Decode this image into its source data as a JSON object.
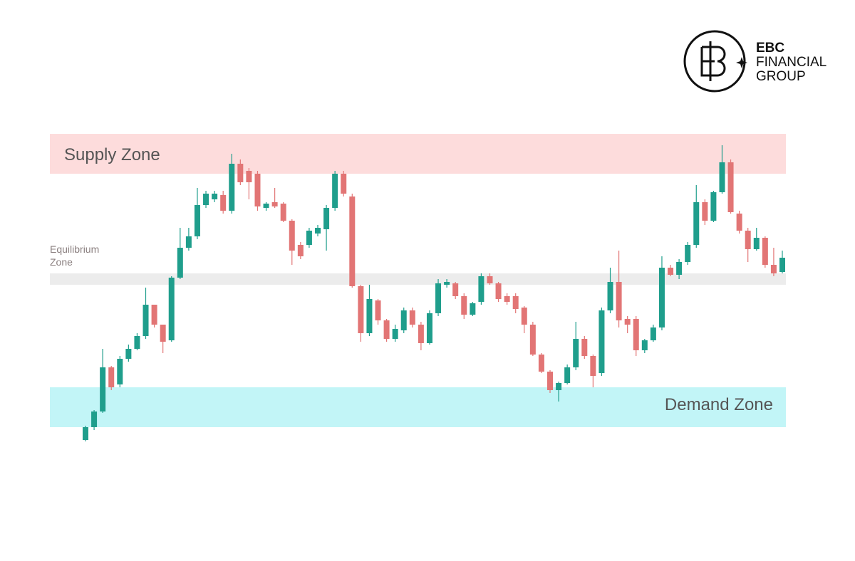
{
  "logo": {
    "line1": "EBC",
    "line2": "FINANCIAL",
    "line3": "GROUP"
  },
  "chart_data": {
    "type": "candlestick",
    "ylim": [
      0,
      120
    ],
    "up_color": "#1f9e8c",
    "down_color": "#e27575",
    "zones": [
      {
        "label": "Supply Zone",
        "range": [
          99,
          113
        ],
        "color": "#fddcdc"
      },
      {
        "label": "Equilibrium Zone",
        "range": [
          60,
          64
        ],
        "color": "#ececec"
      },
      {
        "label": "Demand Zone",
        "range": [
          10,
          24
        ],
        "color": "#c2f5f7"
      }
    ],
    "open": [
      5.5,
      10,
      15.5,
      31,
      25,
      34,
      37.5,
      42,
      53,
      46,
      40.5,
      62.5,
      73,
      77,
      88,
      90,
      91.5,
      86,
      102.5,
      100,
      99,
      87,
      89,
      88.5,
      82.5,
      74,
      74,
      78,
      79.5,
      87,
      99,
      91,
      59.5,
      43,
      54.5,
      47.5,
      41,
      44,
      51,
      46,
      39.5,
      50,
      60,
      60.5,
      56,
      49.5,
      54,
      63,
      60.5,
      56,
      56,
      52,
      46,
      35.5,
      29.5,
      23,
      25.5,
      31,
      41,
      35,
      29,
      51,
      61,
      48,
      48,
      37,
      40.5,
      45,
      66,
      63.5,
      68,
      74,
      89,
      82.5,
      92.5,
      103,
      85,
      79,
      72.5,
      76.5,
      67,
      64.5
    ],
    "high": [
      10.5,
      16,
      37.5,
      31.5,
      35,
      39,
      43,
      59,
      53,
      46,
      63,
      80,
      80,
      94,
      93,
      93,
      93,
      106,
      104,
      101,
      100,
      89,
      94,
      89,
      83,
      75,
      80,
      81,
      88,
      100,
      100,
      92,
      60,
      60,
      55,
      48,
      46,
      52,
      52,
      47,
      51,
      62,
      62,
      61,
      57,
      54,
      64,
      64,
      61,
      57,
      57,
      52.5,
      47,
      36,
      30,
      26,
      32,
      47,
      42,
      35.5,
      52,
      66,
      72,
      49,
      49,
      41,
      46,
      70,
      67,
      69,
      75,
      95,
      90,
      93,
      109,
      104,
      86,
      80,
      80,
      77,
      73,
      72
    ],
    "low": [
      5,
      9,
      15,
      23,
      24,
      33,
      37,
      41,
      45,
      36,
      40,
      62,
      72,
      76,
      87,
      89,
      85,
      85,
      95,
      90,
      86,
      86,
      87,
      82,
      67,
      69,
      73,
      77,
      72,
      86,
      91,
      59,
      40,
      42,
      46,
      40,
      40,
      43,
      45,
      37,
      39,
      49,
      59,
      55,
      48,
      49,
      53,
      60,
      54,
      53,
      50,
      43,
      35,
      29,
      22,
      19,
      25,
      30,
      34,
      24,
      28,
      50,
      45,
      43,
      35,
      36,
      40,
      44,
      63,
      62,
      67,
      73,
      81,
      82,
      92,
      85,
      78,
      68,
      72,
      66,
      63,
      64
    ],
    "close": [
      10,
      15.5,
      31,
      24,
      34,
      37.5,
      42,
      53,
      46,
      40,
      62.5,
      73,
      77,
      88,
      92,
      92,
      86,
      102.5,
      96,
      96,
      87.5,
      88.5,
      87.5,
      82.5,
      72,
      70,
      79,
      80,
      87,
      99,
      92,
      59.5,
      43,
      55,
      47.5,
      41,
      44.5,
      51,
      46,
      39.5,
      50,
      60.5,
      61,
      56,
      49.5,
      53.5,
      63,
      60.5,
      55,
      54,
      51.5,
      46,
      35.5,
      29.5,
      23,
      25.5,
      31,
      41,
      35,
      28,
      51,
      61,
      47.5,
      46,
      37,
      40.5,
      45,
      66,
      63.5,
      68,
      74,
      89,
      82.5,
      92.5,
      103,
      85.5,
      79,
      72.5,
      76.5,
      67,
      64,
      69.5
    ]
  }
}
